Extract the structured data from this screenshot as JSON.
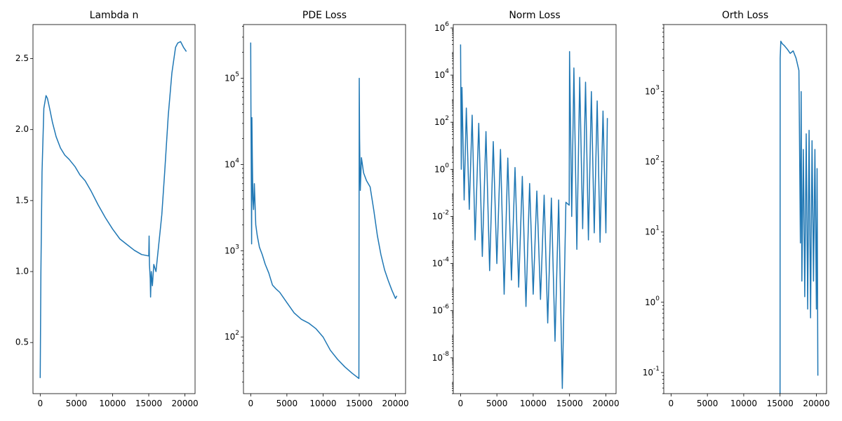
{
  "figure": {
    "line_color": "#1f77b4"
  },
  "chart_data": [
    {
      "type": "line",
      "title": "Lambda n",
      "xscale": "linear",
      "yscale": "linear",
      "xlim": [
        -1000,
        21400
      ],
      "ylim": [
        0.14,
        2.74
      ],
      "xticks": [
        0,
        5000,
        10000,
        15000,
        20000
      ],
      "xtick_labels": [
        "0",
        "5000",
        "10000",
        "15000",
        "20000"
      ],
      "yticks": [
        0.5,
        1.0,
        1.5,
        2.0,
        2.5
      ],
      "ytick_labels": [
        "0.5",
        "1.0",
        "1.5",
        "2.0",
        "2.5"
      ],
      "series": [
        {
          "name": "lambda_n",
          "x": [
            0,
            100,
            250,
            500,
            800,
            1000,
            1300,
            1700,
            2200,
            2800,
            3400,
            4000,
            4800,
            5500,
            6200,
            7000,
            8000,
            9000,
            10000,
            11000,
            12000,
            13000,
            14000,
            15000,
            15050,
            15100,
            15200,
            15250,
            15350,
            15500,
            15700,
            16000,
            16300,
            16500,
            16800,
            17200,
            17700,
            18200,
            18700,
            19000,
            19400,
            19800,
            20200
          ],
          "y": [
            0.25,
            1.0,
            1.7,
            2.15,
            2.24,
            2.22,
            2.15,
            2.05,
            1.95,
            1.87,
            1.82,
            1.79,
            1.74,
            1.68,
            1.64,
            1.57,
            1.47,
            1.38,
            1.3,
            1.23,
            1.19,
            1.15,
            1.12,
            1.11,
            1.25,
            1.05,
            0.95,
            0.82,
            1.0,
            0.9,
            1.05,
            1.0,
            1.15,
            1.25,
            1.4,
            1.7,
            2.1,
            2.4,
            2.58,
            2.61,
            2.62,
            2.58,
            2.55
          ]
        }
      ]
    },
    {
      "type": "line",
      "title": "PDE Loss",
      "xscale": "linear",
      "yscale": "log",
      "xlim": [
        -1000,
        21400
      ],
      "ylim": [
        22,
        420000
      ],
      "xticks": [
        0,
        5000,
        10000,
        15000,
        20000
      ],
      "xtick_labels": [
        "0",
        "5000",
        "10000",
        "15000",
        "20000"
      ],
      "yticks": [
        100,
        1000,
        10000,
        100000
      ],
      "ytick_labels": [
        "10^2",
        "10^3",
        "10^4",
        "10^5"
      ],
      "series": [
        {
          "name": "pde_loss",
          "x": [
            0,
            30,
            80,
            120,
            160,
            220,
            300,
            400,
            500,
            700,
            900,
            1200,
            1600,
            2000,
            2500,
            3000,
            3500,
            4000,
            5000,
            6000,
            7000,
            8000,
            9000,
            10000,
            11000,
            12000,
            13000,
            14000,
            14950,
            15000,
            15050,
            15150,
            15300,
            15600,
            16000,
            16500,
            17000,
            17500,
            18000,
            18500,
            19000,
            19500,
            20000,
            20200
          ],
          "y": [
            260000,
            50000,
            8000,
            1200,
            35000,
            12000,
            4000,
            3000,
            6000,
            2000,
            1500,
            1100,
            900,
            700,
            550,
            400,
            360,
            330,
            250,
            190,
            160,
            145,
            125,
            100,
            70,
            55,
            45,
            38,
            33,
            100000,
            20000,
            5000,
            12000,
            8000,
            6500,
            5500,
            3000,
            1500,
            900,
            600,
            450,
            350,
            280,
            300
          ]
        }
      ]
    },
    {
      "type": "line",
      "title": "Norm Loss",
      "xscale": "linear",
      "yscale": "log",
      "xlim": [
        -1000,
        21400
      ],
      "ylim": 3e-10,
      "ylim_range": [
        3e-10,
        1400000.0
      ],
      "xticks": [
        0,
        5000,
        10000,
        15000,
        20000
      ],
      "xtick_labels": [
        "0",
        "5000",
        "10000",
        "15000",
        "20000"
      ],
      "yticks": [
        1e-08,
        1e-06,
        0.0001,
        0.01,
        1,
        100,
        10000,
        1000000
      ],
      "ytick_labels": [
        "10^-8",
        "10^-6",
        "10^-4",
        "10^-2",
        "10^0",
        "10^2",
        "10^4",
        "10^6"
      ],
      "series": [
        {
          "name": "norm_loss",
          "x": [
            0,
            100,
            200,
            500,
            800,
            1200,
            1600,
            2000,
            2500,
            3000,
            3500,
            4000,
            4500,
            5000,
            5500,
            6000,
            6500,
            7000,
            7500,
            8000,
            8500,
            9000,
            9500,
            10000,
            10500,
            11000,
            11500,
            12000,
            12500,
            13000,
            13500,
            14000,
            14500,
            14950,
            15000,
            15300,
            15600,
            16000,
            16400,
            16800,
            17200,
            17600,
            18000,
            18400,
            18800,
            19200,
            19600,
            20000,
            20200
          ],
          "y": [
            200000,
            1,
            3000,
            0.05,
            400,
            0.02,
            200,
            0.001,
            90,
            0.0002,
            40,
            5e-05,
            15,
            0.0001,
            7,
            5e-06,
            3,
            2e-05,
            1.2,
            1e-05,
            0.5,
            1.5e-06,
            0.25,
            5e-06,
            0.12,
            3e-06,
            0.08,
            3e-07,
            0.06,
            5e-08,
            0.05,
            5e-10,
            0.04,
            0.03,
            100000,
            0.01,
            20000,
            0.0004,
            8000,
            0.003,
            5000,
            0.001,
            2000,
            0.002,
            800,
            0.0008,
            300,
            0.002,
            150
          ]
        }
      ]
    },
    {
      "type": "line",
      "title": "Orth Loss",
      "xscale": "linear",
      "yscale": "log",
      "xlim": [
        -1000,
        21400
      ],
      "ylim": [
        0.05,
        9000
      ],
      "xticks": [
        0,
        5000,
        10000,
        15000,
        20000
      ],
      "xtick_labels": [
        "0",
        "5000",
        "10000",
        "15000",
        "20000"
      ],
      "yticks": [
        0.1,
        1,
        10,
        100,
        1000
      ],
      "ytick_labels": [
        "10^-1",
        "10^0",
        "10^1",
        "10^2",
        "10^3"
      ],
      "series": [
        {
          "name": "orth_loss",
          "x": [
            15000,
            15020,
            15100,
            15300,
            15600,
            16000,
            16400,
            16800,
            17200,
            17600,
            17800,
            17900,
            18000,
            18200,
            18400,
            18600,
            18800,
            19000,
            19200,
            19400,
            19600,
            19800,
            20000,
            20100,
            20200
          ],
          "y": [
            0.05,
            3000,
            5200,
            4800,
            4500,
            4000,
            3500,
            3800,
            3000,
            2000,
            7,
            1000,
            2,
            150,
            1.2,
            250,
            0.8,
            280,
            0.6,
            200,
            2,
            150,
            0.8,
            80,
            0.09
          ]
        }
      ]
    }
  ]
}
